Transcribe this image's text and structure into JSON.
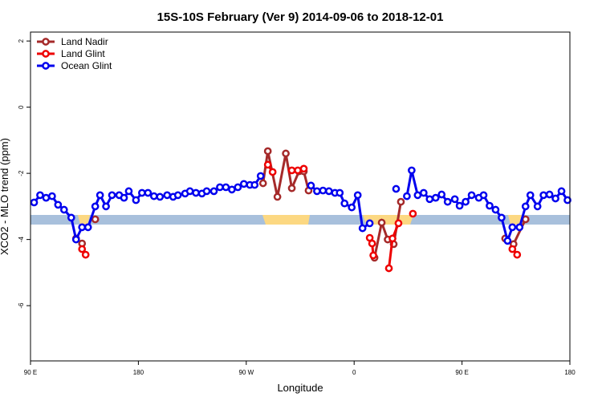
{
  "chart_data": {
    "type": "line",
    "title": "15S-10S February (Ver 9)   2014-09-06 to 2018-12-01",
    "xlabel": "Longitude",
    "ylabel": "XCO2 - MLO trend (ppm)",
    "xlim": [
      90,
      540
    ],
    "xticks": [
      {
        "value": 90,
        "label": "90 E"
      },
      180,
      {
        "value": 270,
        "label": "90 W"
      },
      {
        "value": 360,
        "label": "0"
      },
      {
        "value": 450,
        "label": "90 E"
      },
      {
        "value": 540,
        "label": "180"
      }
    ],
    "ylim": [
      -7.67,
      2.27
    ],
    "yticks": [
      2,
      0,
      -2,
      -4,
      -6
    ],
    "legend": "top-left",
    "series": [
      {
        "name": "Land Nadir",
        "color": "#a52a2a",
        "x": [
          128,
          133,
          null,
          144,
          null,
          284,
          288,
          296,
          303,
          308,
          314,
          318,
          322,
          null,
          377,
          383,
          388,
          393,
          399,
          null,
          486,
          493,
          503
        ],
        "values": [
          -3.97,
          -4.12,
          null,
          -3.39,
          null,
          -2.3,
          -1.33,
          -2.71,
          -1.4,
          -2.45,
          -1.94,
          -1.94,
          -2.52,
          null,
          -4.55,
          -3.49,
          -4.0,
          -4.14,
          -2.86,
          null,
          -3.97,
          -4.14,
          -3.39
        ]
      },
      {
        "name": "Land Glint",
        "color": "#ee0000",
        "x": [
          133,
          136,
          null,
          288,
          292,
          null,
          308,
          313,
          318,
          null,
          373,
          375,
          376,
          null,
          389,
          392,
          397,
          null,
          409,
          null,
          492,
          496
        ],
        "values": [
          -4.29,
          -4.46,
          null,
          -1.74,
          -1.96,
          null,
          -1.91,
          -1.91,
          -1.86,
          null,
          -3.95,
          -4.12,
          -4.48,
          null,
          -4.87,
          -3.97,
          -3.51,
          null,
          -3.22,
          null,
          -4.29,
          -4.46
        ]
      },
      {
        "name": "Ocean Glint",
        "color": "#0000ee",
        "x": [
          93,
          98,
          103,
          108,
          113,
          118,
          124,
          128,
          133,
          138,
          144,
          148,
          153,
          158,
          164,
          168,
          172,
          178,
          183,
          188,
          193,
          198,
          204,
          209,
          213,
          219,
          223,
          228,
          233,
          237,
          243,
          248,
          253,
          258,
          263,
          268,
          273,
          277,
          282,
          null,
          324,
          329,
          334,
          339,
          344,
          348,
          352,
          358,
          363,
          367,
          373,
          null,
          395,
          null,
          404,
          408,
          413,
          418,
          423,
          428,
          433,
          438,
          444,
          448,
          453,
          458,
          464,
          468,
          473,
          478,
          483,
          488,
          492,
          498,
          503,
          507,
          513,
          518,
          523,
          528,
          533,
          538
        ],
        "values": [
          -2.88,
          -2.66,
          -2.74,
          -2.69,
          -2.95,
          -3.1,
          -3.34,
          -4.0,
          -3.63,
          -3.63,
          -3.0,
          -2.66,
          -3.0,
          -2.66,
          -2.66,
          -2.74,
          -2.54,
          -2.81,
          -2.59,
          -2.59,
          -2.69,
          -2.71,
          -2.66,
          -2.71,
          -2.66,
          -2.61,
          -2.54,
          -2.59,
          -2.61,
          -2.54,
          -2.54,
          -2.42,
          -2.42,
          -2.49,
          -2.42,
          -2.32,
          -2.35,
          -2.35,
          -2.08,
          null,
          -2.37,
          -2.54,
          -2.52,
          -2.54,
          -2.59,
          -2.59,
          -2.91,
          -3.03,
          -2.66,
          -3.66,
          -3.51,
          null,
          -2.47,
          null,
          -2.69,
          -1.91,
          -2.66,
          -2.59,
          -2.78,
          -2.74,
          -2.64,
          -2.86,
          -2.78,
          -2.98,
          -2.86,
          -2.66,
          -2.74,
          -2.66,
          -2.98,
          -3.1,
          -3.34,
          -4.04,
          -3.63,
          -3.63,
          -3.0,
          -2.66,
          -3.0,
          -2.66,
          -2.64,
          -2.76,
          -2.54,
          -2.81
        ]
      }
    ]
  }
}
